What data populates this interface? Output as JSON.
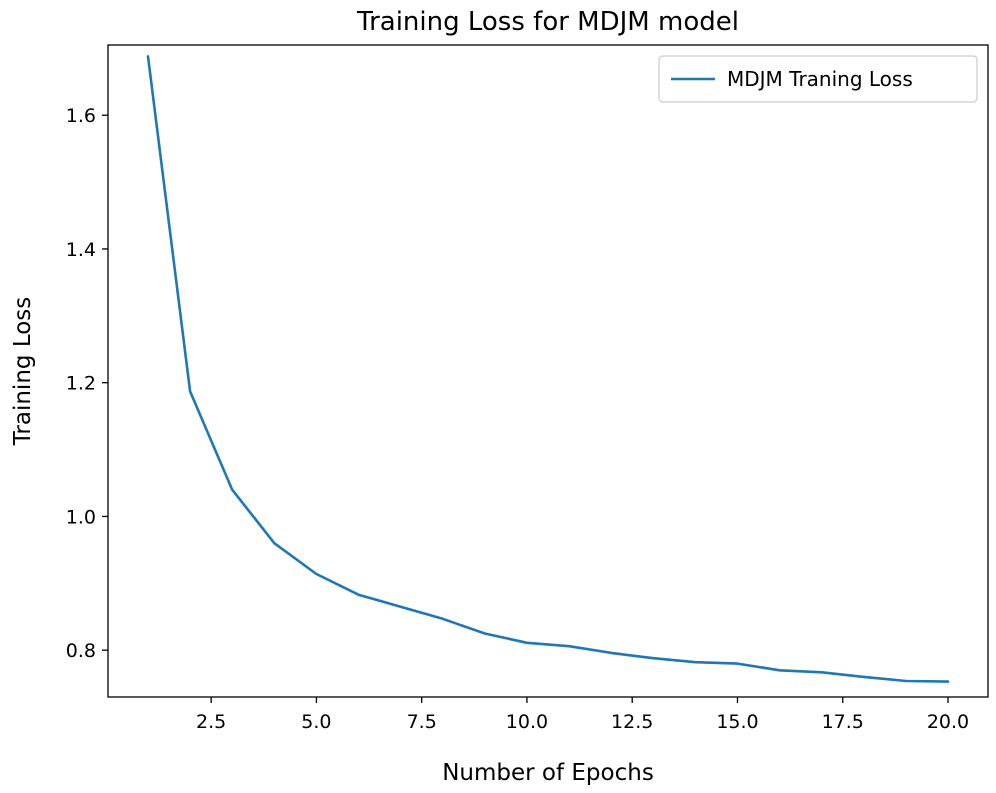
{
  "chart_data": {
    "type": "line",
    "title": "Training Loss for MDJM model",
    "xlabel": "Number of Epochs",
    "ylabel": "Training Loss",
    "xlim": [
      0.05,
      20.95
    ],
    "ylim": [
      0.73,
      1.705
    ],
    "x_ticks": [
      2.5,
      5.0,
      7.5,
      10.0,
      12.5,
      15.0,
      17.5,
      20.0
    ],
    "x_tick_labels": [
      "2.5",
      "5.0",
      "7.5",
      "10.0",
      "12.5",
      "15.0",
      "17.5",
      "20.0"
    ],
    "y_ticks": [
      0.8,
      1.0,
      1.2,
      1.4,
      1.6
    ],
    "y_tick_labels": [
      "0.8",
      "1.0",
      "1.2",
      "1.4",
      "1.6"
    ],
    "grid": false,
    "legend_position": "top-right",
    "series": [
      {
        "name": "MDJM Traning Loss",
        "color": "#1f77b4",
        "x": [
          1,
          2,
          3,
          4,
          5,
          6,
          7,
          8,
          9,
          10,
          11,
          12,
          13,
          14,
          15,
          16,
          17,
          18,
          19,
          20
        ],
        "values": [
          1.688,
          1.187,
          1.04,
          0.96,
          0.914,
          0.883,
          0.865,
          0.847,
          0.825,
          0.811,
          0.806,
          0.796,
          0.788,
          0.782,
          0.78,
          0.77,
          0.767,
          0.76,
          0.754,
          0.753
        ]
      }
    ]
  }
}
